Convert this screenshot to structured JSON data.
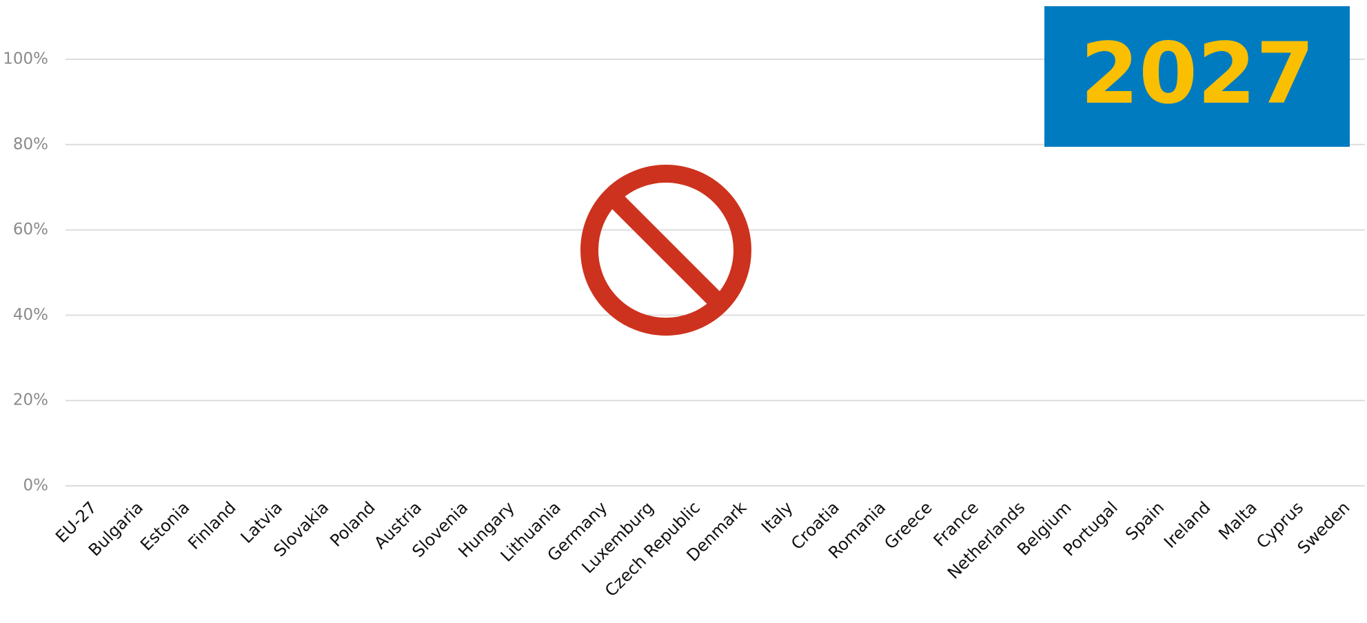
{
  "chart_data": {
    "type": "bar",
    "categories": [
      "EU-27",
      "Bulgaria",
      "Estonia",
      "Finland",
      "Latvia",
      "Slovakia",
      "Poland",
      "Austria",
      "Slovenia",
      "Hungary",
      "Lithuania",
      "Germany",
      "Luxemburg",
      "Czech Republic",
      "Denmark",
      "Italy",
      "Croatia",
      "Romania",
      "Greece",
      "France",
      "Netherlands",
      "Belgium",
      "Portugal",
      "Spain",
      "Ireland",
      "Malta",
      "Cyprus",
      "Sweden"
    ],
    "ylim": [
      0,
      100
    ],
    "yticks": [
      {
        "value": 0,
        "label": "0%"
      },
      {
        "value": 20,
        "label": "20%"
      },
      {
        "value": 40,
        "label": "40%"
      },
      {
        "value": 60,
        "label": "60%"
      },
      {
        "value": 80,
        "label": "80%"
      },
      {
        "value": 100,
        "label": "100%"
      }
    ],
    "grid": true,
    "annotation": "2027"
  }
}
